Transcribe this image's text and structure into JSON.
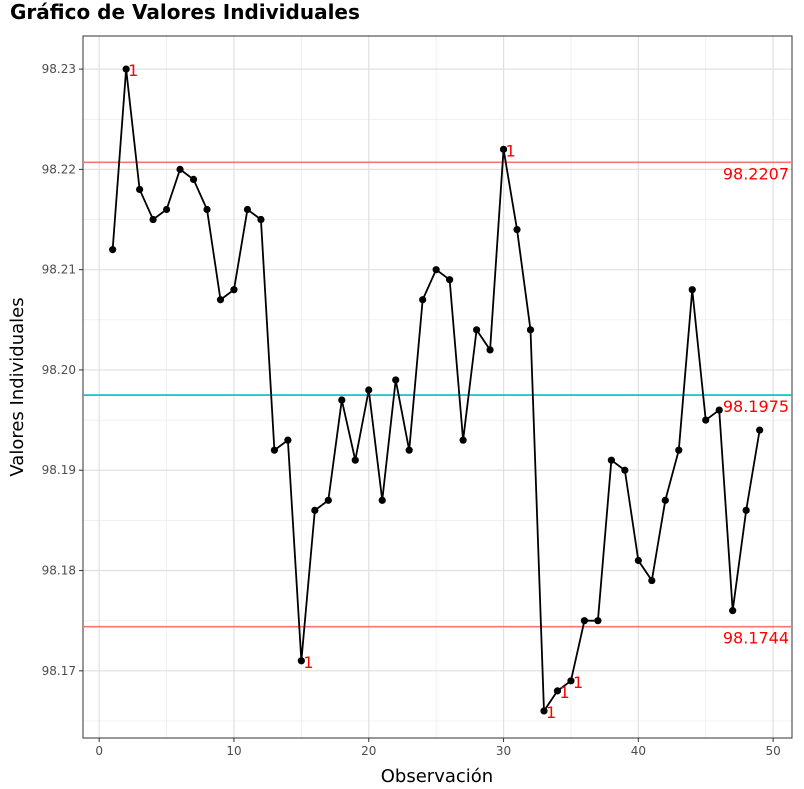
{
  "chart_data": {
    "type": "line",
    "title": "Gráfico de Valores Individuales",
    "xlabel": "Observación",
    "ylabel": "Valores Individuales",
    "xlim": [
      -1.2,
      51.4
    ],
    "ylim": [
      98.1633,
      98.2333
    ],
    "x_ticks": [
      0,
      10,
      20,
      30,
      40,
      50
    ],
    "y_ticks": [
      98.17,
      98.18,
      98.19,
      98.2,
      98.21,
      98.22,
      98.23
    ],
    "x_tick_labels": [
      "0",
      "10",
      "20",
      "30",
      "40",
      "50"
    ],
    "y_tick_labels": [
      "98.17",
      "98.18",
      "98.19",
      "98.20",
      "98.21",
      "98.22",
      "98.23"
    ],
    "grid": true,
    "series": [
      {
        "x": [
          1,
          2,
          3,
          4,
          5,
          6,
          7,
          8,
          9,
          10,
          11,
          12,
          13,
          14,
          15,
          16,
          17,
          18,
          19,
          20,
          21,
          22,
          23,
          24,
          25,
          26,
          27,
          28,
          29,
          30,
          31,
          32,
          33,
          34,
          35,
          36,
          37,
          38,
          39,
          40,
          41,
          42,
          43,
          44,
          45,
          46,
          47,
          48,
          49
        ],
        "values": [
          98.212,
          98.23,
          98.218,
          98.215,
          98.216,
          98.22,
          98.219,
          98.216,
          98.207,
          98.208,
          98.216,
          98.215,
          98.192,
          98.193,
          98.171,
          98.186,
          98.187,
          98.197,
          98.191,
          98.198,
          98.187,
          98.199,
          98.192,
          98.207,
          98.21,
          98.209,
          98.193,
          98.204,
          98.202,
          98.222,
          98.214,
          98.204,
          98.166,
          98.168,
          98.169,
          98.175,
          98.175,
          98.191,
          98.19,
          98.181,
          98.179,
          98.187,
          98.192,
          98.208,
          98.195,
          98.196,
          98.176,
          98.186,
          98.194
        ],
        "color": "#000000"
      }
    ],
    "control_lines": [
      {
        "value": 98.2207,
        "label": "98.2207",
        "color": "#f8766d"
      },
      {
        "value": 98.1975,
        "label": "98.1975",
        "color": "#00bfc4"
      },
      {
        "value": 98.1744,
        "label": "98.1744",
        "color": "#f8766d"
      }
    ],
    "violations": [
      {
        "x": 2,
        "y": 98.23,
        "label": "1"
      },
      {
        "x": 15,
        "y": 98.171,
        "label": "1"
      },
      {
        "x": 30,
        "y": 98.222,
        "label": "1"
      },
      {
        "x": 33,
        "y": 98.166,
        "label": "1"
      },
      {
        "x": 34,
        "y": 98.168,
        "label": "1"
      },
      {
        "x": 35,
        "y": 98.169,
        "label": "1"
      }
    ],
    "violation_color": "#ff0000"
  }
}
